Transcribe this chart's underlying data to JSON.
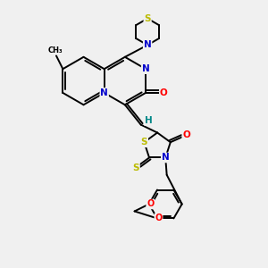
{
  "bg_color": "#f0f0f0",
  "bond_color": "#000000",
  "N_color": "#0000cc",
  "O_color": "#ff0000",
  "S_color": "#bbbb00",
  "H_color": "#008888",
  "figsize": [
    3.0,
    3.0
  ],
  "dpi": 100,
  "xlim": [
    0,
    10
  ],
  "ylim": [
    0,
    10
  ]
}
